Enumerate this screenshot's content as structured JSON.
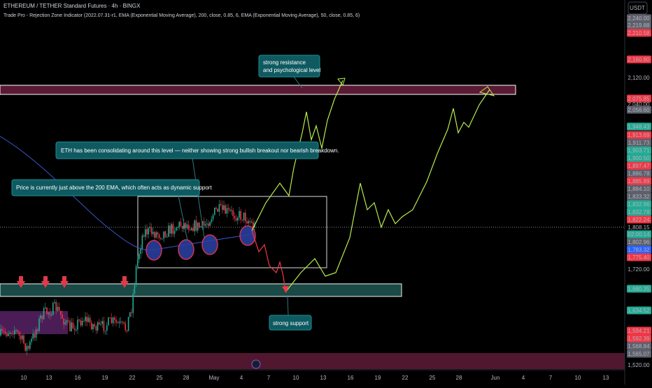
{
  "header": {
    "title": "ETHEREUM / TETHER Standard Futures · 4h · BINGX",
    "indicators": "Trade Pro - Rejection Zone Indicator (2022.07.31-r1, EMA (Exponential Moving Average), 200, close, 0.85, 6, EMA (Exponential Moving Average), 50, close, 0.85, 6)",
    "currency": "USDT"
  },
  "annotations": {
    "resistance": [
      "strong resistance",
      "and psychological level"
    ],
    "consolidation": "ETH has been consolidating around this level — neither showing strong bullish breakout nor bearish breakdown.",
    "ema": "Price is currently just above the 200 EMA, which often acts as dynamic support",
    "support": "strong support"
  },
  "price_labels": [
    "2,240.00",
    "2,219.88",
    "2,210.58",
    "2,160.80",
    "2,120.00",
    "2,075.85",
    "2,040.00",
    "2,056.60",
    "1,948.43",
    "1,913.69",
    "1,911.73",
    "1,903.71",
    "1,900.50",
    "1,897.47",
    "1,886.78",
    "1,885.89",
    "1,884.10",
    "1,833.32",
    "1,832.96",
    "1,832.78",
    "1,822.24",
    "1,808.15",
    "02:00:14",
    "1,802.96",
    "1,783.32",
    "1,775.40",
    "1,720.00",
    "1,680.35",
    "1,634.52",
    "1,594.21",
    "1,592.39",
    "1,568.84",
    "1,565.07",
    "1,520.00"
  ],
  "time_axis": [
    "10",
    "13",
    "16",
    "19",
    "22",
    "25",
    "28",
    "May",
    "4",
    "7",
    "10",
    "13",
    "16",
    "19",
    "22",
    "25",
    "28",
    "Jun",
    "4",
    "7",
    "10",
    "13"
  ]
}
